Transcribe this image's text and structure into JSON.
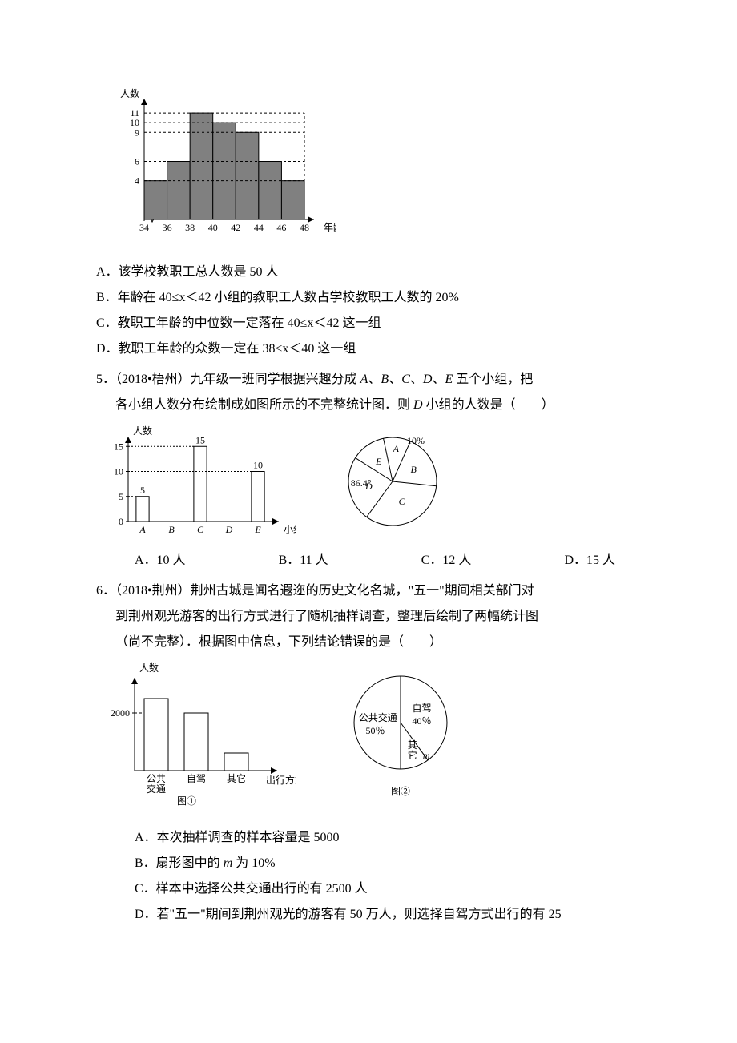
{
  "q4": {
    "chart": {
      "ylabel": "人数",
      "xlabel": "年龄",
      "yticks": [
        4,
        6,
        9,
        10,
        11
      ],
      "xticks": [
        34,
        36,
        38,
        40,
        42,
        44,
        46,
        48
      ],
      "bars": [
        4,
        6,
        11,
        10,
        9,
        6,
        4
      ],
      "bar_fill": "#808080",
      "grid_dash": "3,3",
      "grid_color": "#000000",
      "axis_color": "#000000"
    },
    "opt_a": "A．该学校教职工总人数是 50 人",
    "opt_b": "B．年龄在 40≤x＜42 小组的教职工人数占学校教职工人数的 20%",
    "opt_c": "C．教职工年龄的中位数一定落在 40≤x＜42 这一组",
    "opt_d": "D．教职工年龄的众数一定在 38≤x＜40 这一组"
  },
  "q5": {
    "stem1": "5．（2018•梧州）九年级一班同学根据兴趣分成 A、B、C、D、E 五个小组，把",
    "stem2": "各小组人数分布绘制成如图所示的不完整统计图．则 D 小组的人数是（　　）",
    "bar": {
      "ylabel": "人数",
      "xlabel": "小组",
      "yticks": [
        0,
        5,
        10,
        15
      ],
      "cats": [
        "A",
        "B",
        "C",
        "D",
        "E"
      ],
      "vals": {
        "A": 5,
        "C": 15,
        "E": 10
      },
      "labels": {
        "A": "5",
        "C": "15",
        "E": "10"
      },
      "bar_fill": "#ffffff",
      "axis_color": "#000000"
    },
    "pie": {
      "labels": {
        "A": "A",
        "B": "B",
        "C": "C",
        "D": "D",
        "E": "E"
      },
      "a_pct": "10%",
      "d_angle": "86.4°",
      "stroke": "#000000"
    },
    "opts": {
      "a": "A．10 人",
      "b": "B．11 人",
      "c": "C．12 人",
      "d": "D．15 人"
    }
  },
  "q6": {
    "stem1": "6．（2018•荆州）荆州古城是闻名遐迩的历史文化名城，\"五一\"期间相关部门对",
    "stem2": "到荆州观光游客的出行方式进行了随机抽样调查，整理后绘制了两幅统计图",
    "stem3": "（尚不完整）．根据图中信息，下列结论错误的是（　　）",
    "bar": {
      "ylabel": "人数",
      "xlabel": "出行方式",
      "ytick": "2000",
      "cats": [
        "公共\n交通",
        "自驾",
        "其它"
      ],
      "caption": "图①",
      "axis_color": "#000000",
      "bar_fill": "#ffffff"
    },
    "pie": {
      "labels": {
        "pub": "公共交通",
        "self": "自驾",
        "other": "其\n它"
      },
      "pub_pct": "50％",
      "self_pct": "40％",
      "other_m": "m",
      "caption": "图②",
      "stroke": "#000000"
    },
    "opt_a": "A．本次抽样调查的样本容量是 5000",
    "opt_b": "B．扇形图中的 m 为 10%",
    "opt_c": "C．样本中选择公共交通出行的有 2500 人",
    "opt_d": "D．若\"五一\"期间到荆州观光的游客有 50 万人，则选择自驾方式出行的有 25"
  }
}
